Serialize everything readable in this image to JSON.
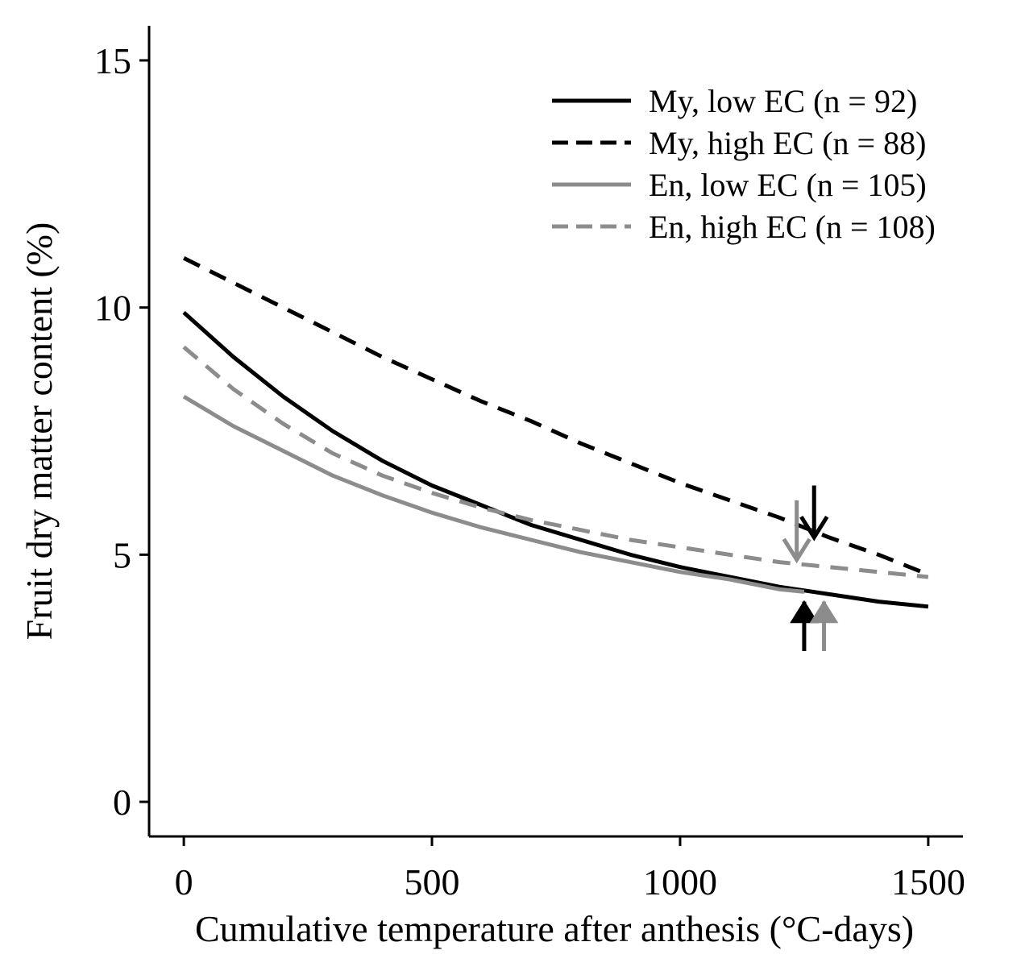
{
  "chart_data": {
    "type": "line",
    "title": "",
    "xlabel": "Cumulative temperature after anthesis (°C-days)",
    "ylabel": "Fruit dry matter content (%)",
    "xlim": [
      -70,
      1570
    ],
    "ylim": [
      -0.7,
      15.7
    ],
    "xticks": [
      0,
      500,
      1000,
      1500
    ],
    "yticks": [
      0,
      5,
      10,
      15
    ],
    "xtick_labels": [
      "0",
      "500",
      "1000",
      "1500"
    ],
    "ytick_labels": [
      "0",
      "5",
      "10",
      "15"
    ],
    "grid": false,
    "legend_position": "top-right",
    "series": [
      {
        "name": "My, low EC (n = 92)",
        "color": "#000000",
        "dash": "solid",
        "x": [
          0,
          100,
          200,
          300,
          400,
          500,
          600,
          700,
          800,
          900,
          1000,
          1100,
          1200,
          1300,
          1400,
          1500
        ],
        "y": [
          9.9,
          9.0,
          8.2,
          7.5,
          6.9,
          6.4,
          6.0,
          5.6,
          5.3,
          5.0,
          4.75,
          4.55,
          4.35,
          4.2,
          4.05,
          3.95
        ]
      },
      {
        "name": "My, high EC (n = 88)",
        "color": "#000000",
        "dash": "dashed",
        "x": [
          0,
          100,
          200,
          300,
          400,
          500,
          600,
          700,
          800,
          900,
          1000,
          1100,
          1200,
          1300,
          1400,
          1500
        ],
        "y": [
          11.0,
          10.5,
          10.0,
          9.5,
          9.0,
          8.55,
          8.1,
          7.7,
          7.25,
          6.85,
          6.45,
          6.1,
          5.75,
          5.35,
          5.0,
          4.6
        ]
      },
      {
        "name": "En, low EC (n = 105)",
        "color": "#8c8c8c",
        "dash": "solid",
        "x": [
          0,
          100,
          200,
          300,
          400,
          500,
          600,
          700,
          800,
          900,
          1000,
          1100,
          1200,
          1250
        ],
        "y": [
          8.2,
          7.6,
          7.1,
          6.6,
          6.2,
          5.85,
          5.55,
          5.3,
          5.05,
          4.85,
          4.65,
          4.5,
          4.3,
          4.25
        ]
      },
      {
        "name": "En, high EC (n = 108)",
        "color": "#8c8c8c",
        "dash": "dashed",
        "x": [
          0,
          100,
          200,
          300,
          400,
          500,
          600,
          700,
          800,
          900,
          1000,
          1100,
          1200,
          1300,
          1400,
          1500
        ],
        "y": [
          9.2,
          8.35,
          7.65,
          7.05,
          6.6,
          6.25,
          5.95,
          5.7,
          5.5,
          5.3,
          5.15,
          5.0,
          4.85,
          4.75,
          4.65,
          4.55
        ]
      }
    ],
    "annotations": [
      {
        "type": "arrow",
        "direction": "down",
        "color": "#000000",
        "x": 1270,
        "y_start": 6.4,
        "y_end": 5.35
      },
      {
        "type": "arrow",
        "direction": "down",
        "color": "#8c8c8c",
        "x": 1235,
        "y_start": 6.1,
        "y_end": 4.9
      },
      {
        "type": "arrow",
        "direction": "up",
        "color": "#000000",
        "x": 1250,
        "y_start": 3.05,
        "y_end": 4.05
      },
      {
        "type": "arrow",
        "direction": "up",
        "color": "#8c8c8c",
        "x": 1290,
        "y_start": 3.05,
        "y_end": 4.05
      }
    ]
  }
}
